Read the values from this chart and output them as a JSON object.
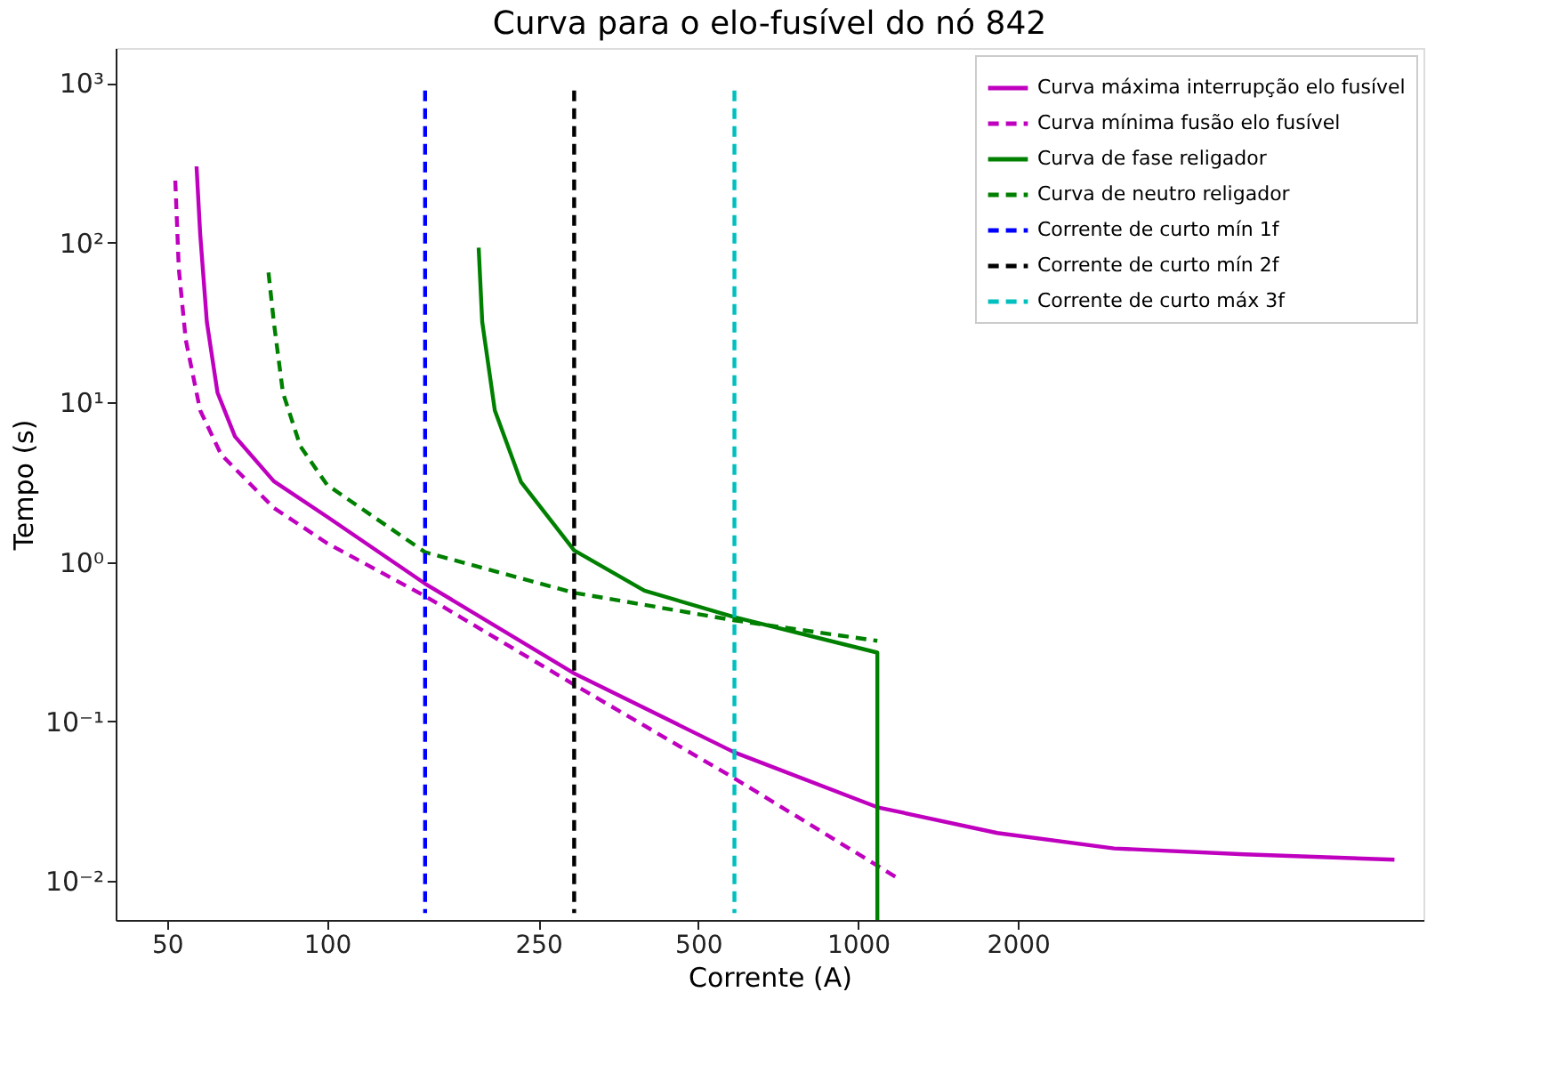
{
  "chart_data": {
    "type": "line",
    "title": "Curva para o elo-fusível do nó 842",
    "xlabel": "Corrente (A)",
    "ylabel": "Tempo (s)",
    "log": "xy",
    "grid": false,
    "legend": "top right",
    "xlim": [
      40,
      11600
    ],
    "ylim": [
      0.0057,
      1660
    ],
    "xticks": [
      50,
      100,
      250,
      500,
      1000,
      2000
    ],
    "yticks": [
      {
        "value": 0.01,
        "label": "10⁻²"
      },
      {
        "value": 0.1,
        "label": "10⁻¹"
      },
      {
        "value": 1,
        "label": "10⁰"
      },
      {
        "value": 10,
        "label": "10¹"
      },
      {
        "value": 100,
        "label": "10²"
      },
      {
        "value": 1000,
        "label": "10³"
      }
    ],
    "series": [
      {
        "name": "Curva máxima interrupção elo fusível",
        "color": "#bf00bf",
        "line_style": "solid",
        "x": [
          56.8,
          57.7,
          59.4,
          62.2,
          67.1,
          79.4,
          100,
          153,
          292,
          585,
          1087,
          1828,
          3034,
          5345,
          10230
        ],
        "values": [
          301,
          114,
          31.9,
          11.5,
          6.1,
          3.2,
          1.92,
          0.73,
          0.2,
          0.064,
          0.029,
          0.02,
          0.016,
          0.0147,
          0.0136
        ]
      },
      {
        "name": "Curva mínima fusão elo fusível",
        "color": "#bf00bf",
        "line_style": "dashed",
        "x": [
          51.8,
          52.6,
          54.2,
          57.7,
          63.2,
          79.4,
          100,
          153,
          292,
          585,
          1183
        ],
        "values": [
          245,
          68.6,
          24.7,
          8.9,
          4.7,
          2.18,
          1.31,
          0.61,
          0.17,
          0.044,
          0.0105
        ]
      },
      {
        "name": "Curva de fase religador",
        "color": "#008000",
        "line_style": "solid",
        "x": [
          193,
          196,
          207,
          232,
          292,
          396,
          585,
          1087,
          1087
        ],
        "values": [
          93,
          31.9,
          8.9,
          3.16,
          1.18,
          0.66,
          0.45,
          0.27,
          0.0057
        ]
      },
      {
        "name": "Curva de neutro religador",
        "color": "#008000",
        "line_style": "dashed",
        "x": [
          77.6,
          79.4,
          82.6,
          89.1,
          100,
          153,
          292,
          585,
          1087
        ],
        "values": [
          65.1,
          31.9,
          11.5,
          5.3,
          3.04,
          1.15,
          0.64,
          0.43,
          0.32
        ]
      },
      {
        "name": "Corrente de curto mín 1f",
        "color": "#0000ff",
        "line_style": "dashed",
        "x": [
          153,
          153
        ],
        "values": [
          900,
          0.0063
        ]
      },
      {
        "name": "Corrente de curto mín 2f",
        "color": "#000000",
        "line_style": "dashed",
        "x": [
          292,
          292
        ],
        "values": [
          900,
          0.0063
        ]
      },
      {
        "name": "Corrente de curto máx 3f",
        "color": "#00bfbf",
        "line_style": "dashed",
        "x": [
          585,
          585
        ],
        "values": [
          900,
          0.0063
        ]
      }
    ]
  }
}
